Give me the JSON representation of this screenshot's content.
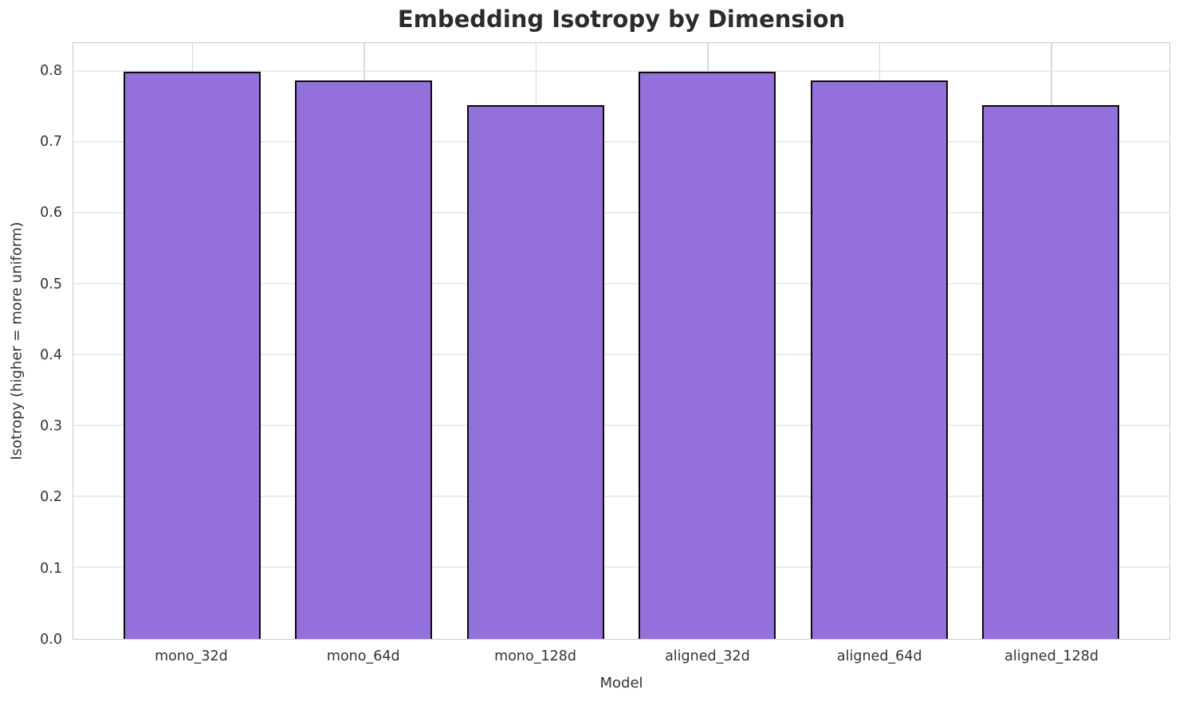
{
  "chart_data": {
    "type": "bar",
    "title": "Embedding Isotropy by Dimension",
    "xlabel": "Model",
    "ylabel": "Isotropy (higher = more uniform)",
    "categories": [
      "mono_32d",
      "mono_64d",
      "mono_128d",
      "aligned_32d",
      "aligned_64d",
      "aligned_128d"
    ],
    "values": [
      0.8,
      0.787,
      0.752,
      0.8,
      0.787,
      0.752
    ],
    "ylim": [
      0.0,
      0.84
    ],
    "yticks": [
      0.0,
      0.1,
      0.2,
      0.3,
      0.4,
      0.5,
      0.6,
      0.7,
      0.8
    ],
    "ytick_labels": [
      "0.0",
      "0.1",
      "0.2",
      "0.3",
      "0.4",
      "0.5",
      "0.6",
      "0.7",
      "0.8"
    ],
    "grid": true,
    "legend": "none",
    "bar_color": "#9370DB",
    "bar_edge_color": "#0a0a0a"
  }
}
